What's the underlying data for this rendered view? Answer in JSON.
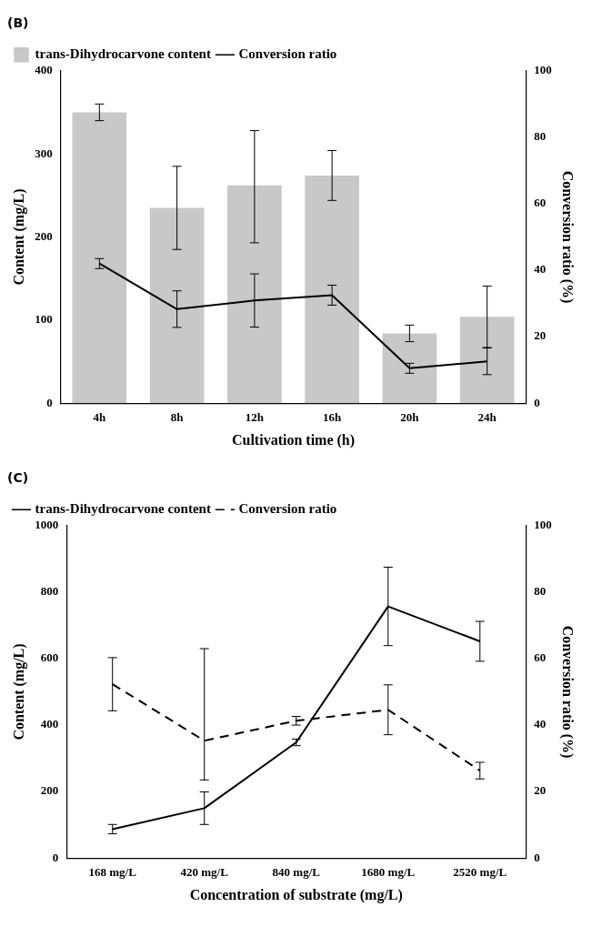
{
  "chart_data": [
    {
      "type": "bar",
      "title": "(B)",
      "categories": [
        "4h",
        "8h",
        "12h",
        "16h",
        "20h",
        "24h"
      ],
      "xlabel": "Cultivation time (h)",
      "ylabel": "Content (mg/L)",
      "y2label": "Conversion ratio (%)",
      "ylim": [
        0,
        400
      ],
      "yticks": [
        0,
        100,
        200,
        300,
        400
      ],
      "y2lim": [
        0,
        100
      ],
      "y2ticks": [
        0,
        20,
        40,
        60,
        80,
        100
      ],
      "legend": "top left",
      "marker": "none",
      "grid": false,
      "series": [
        {
          "name": "trans-Dihydrocarvone content",
          "color": "#c8c8c8",
          "values": [
            350,
            235,
            262,
            274,
            84,
            104
          ],
          "errors": [
            10,
            50,
            [
              193,
              328
            ],
            30,
            10,
            37
          ]
        },
        {
          "type": "line",
          "axis": "y2",
          "line_style": "solid",
          "name": "Conversion ratio",
          "color": "#000000",
          "values": [
            42,
            28.3,
            30.9,
            32.5,
            10.5,
            12.6
          ],
          "errors": [
            1.5,
            5.5,
            8,
            3,
            1.5,
            4
          ]
        }
      ]
    },
    {
      "type": "line",
      "title": "(C)",
      "categories": [
        "168 mg/L",
        "420 mg/L",
        "840 mg/L",
        "1680 mg/L",
        "2520 mg/L"
      ],
      "xlabel": "Concentration of substrate (mg/L)",
      "ylabel": "Content (mg/L)",
      "y2label": "Conversion ratio (%)",
      "ylim": [
        0,
        1000
      ],
      "yticks": [
        0,
        200,
        400,
        600,
        800,
        1000
      ],
      "y2lim": [
        0,
        100
      ],
      "y2ticks": [
        0,
        20,
        40,
        60,
        80,
        100
      ],
      "legend": "top left",
      "marker": "none",
      "grid": false,
      "series": [
        {
          "name": "trans-Dihydrocarvone content",
          "line_style": "solid",
          "color": "#000000",
          "values": [
            87,
            150,
            348,
            757,
            652
          ],
          "errors": [
            14,
            49,
            10,
            118,
            60
          ]
        },
        {
          "axis": "y2",
          "line_style": "dashed",
          "name": "Conversion ratio",
          "color": "#000000",
          "values": [
            52.3,
            35.3,
            41.3,
            44.6,
            26.3
          ],
          "errors": [
            8,
            [
              23.5,
              63
            ],
            1.3,
            7.5,
            2.5
          ]
        }
      ]
    }
  ]
}
